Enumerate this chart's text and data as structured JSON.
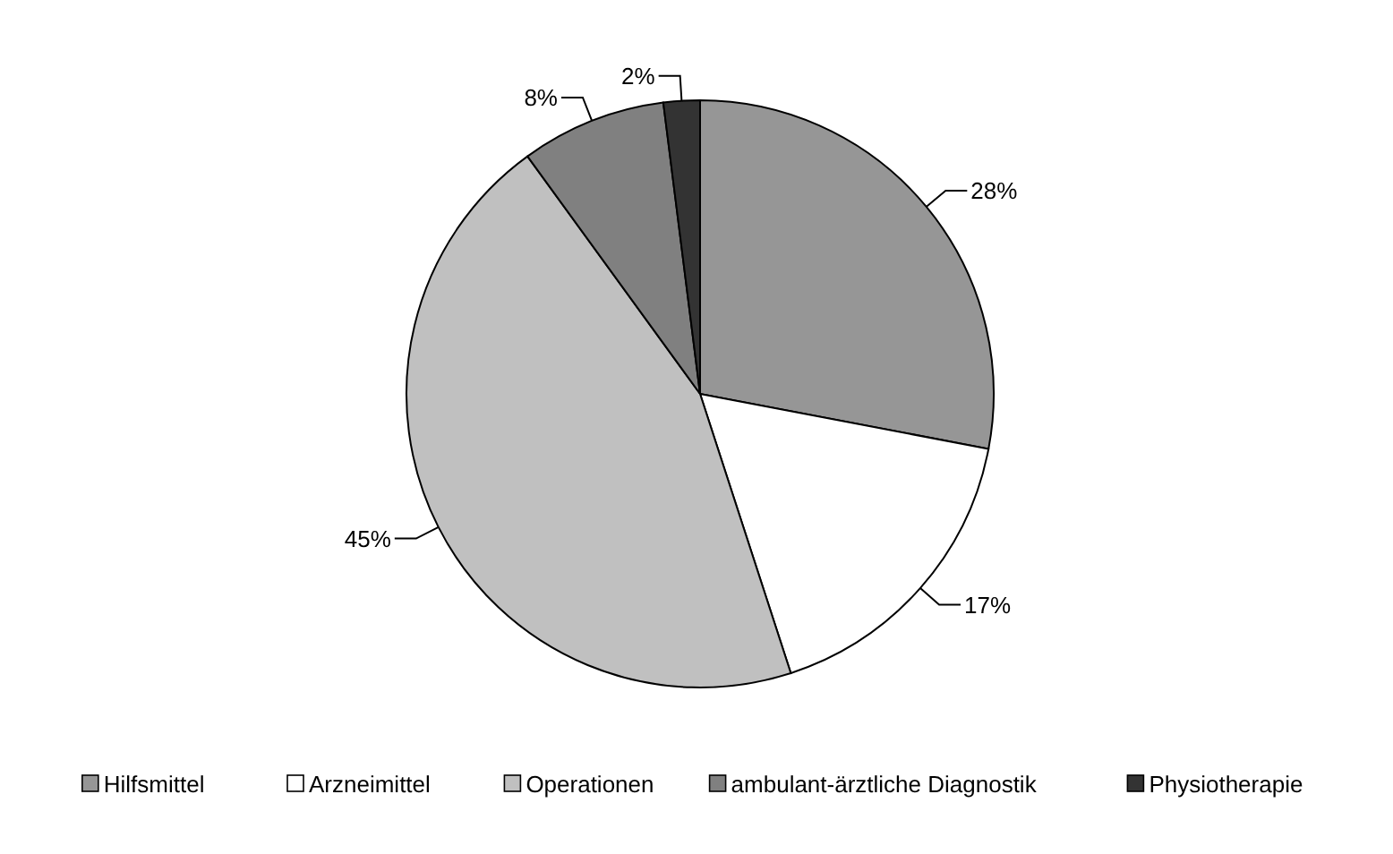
{
  "chart_data": {
    "type": "pie",
    "categories": [
      "Hilfsmittel",
      "Arzneimittel",
      "Operationen",
      "ambulant-ärztliche Diagnostik",
      "Physiotherapie"
    ],
    "values": [
      28,
      17,
      45,
      8,
      2
    ],
    "colors": [
      "#969696",
      "#ffffff",
      "#c0c0c0",
      "#808080",
      "#333333"
    ],
    "value_labels": [
      "28%",
      "17%",
      "45%",
      "8%",
      "2%"
    ],
    "legend": "bottom"
  }
}
